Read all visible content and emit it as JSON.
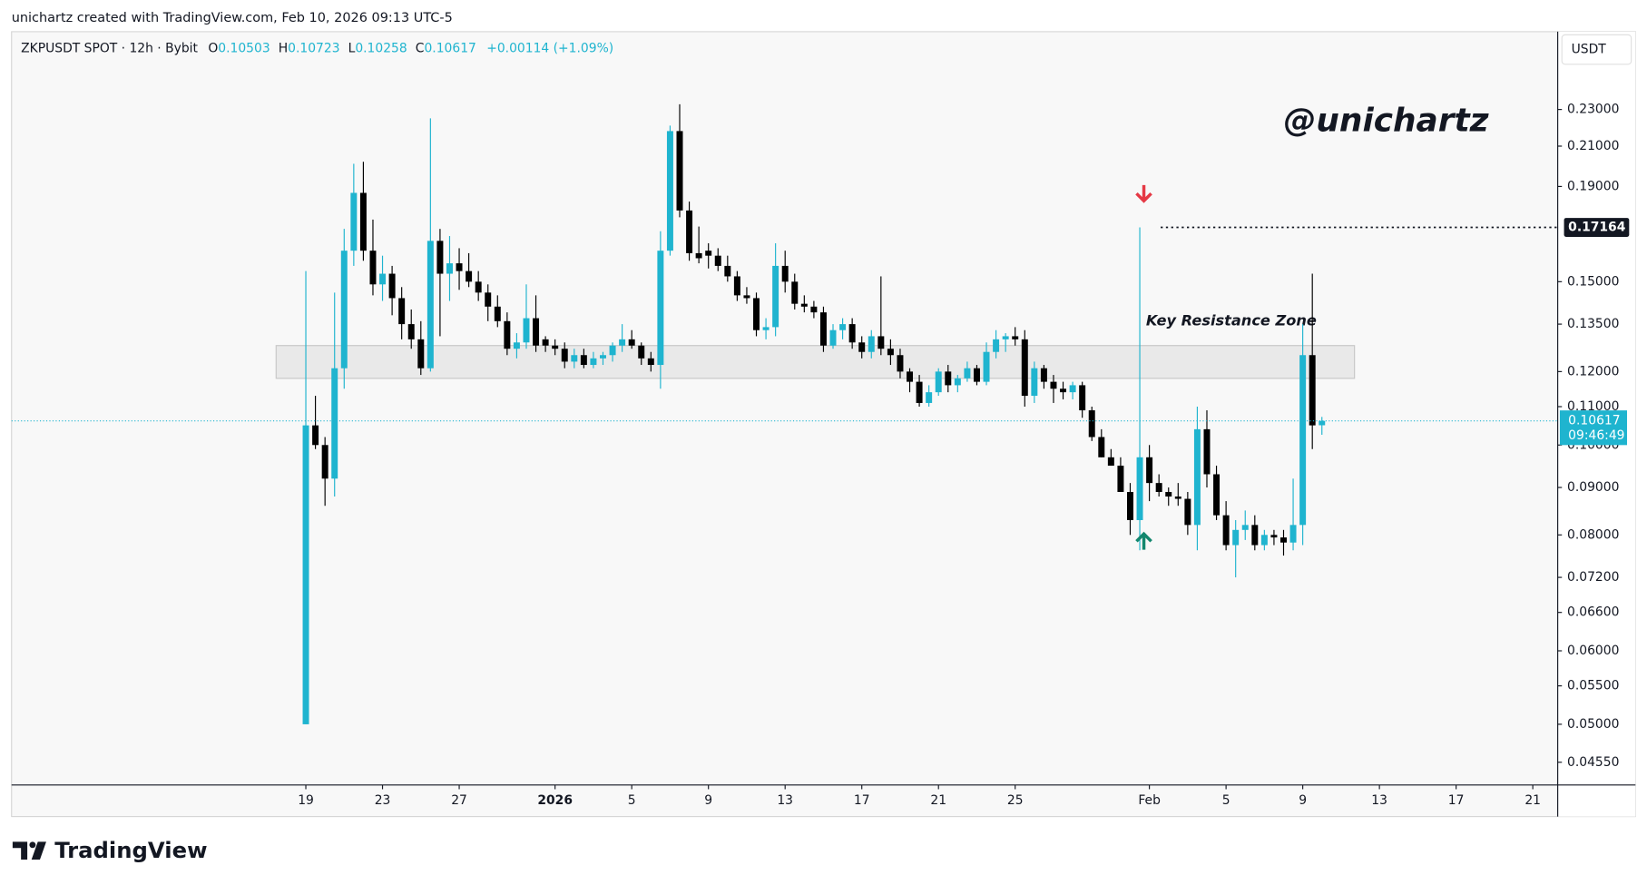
{
  "header": "unichartz created with TradingView.com, Feb 10, 2026 09:13 UTC-5",
  "watermark": "@unichartz",
  "footer": {
    "brand": "TradingView"
  },
  "chart_data": {
    "type": "candlestick",
    "symbol": "ZKPUSDT SPOT · 12h · Bybit",
    "legend_labels": [
      "O",
      "H",
      "L",
      "C"
    ],
    "change": "+0.00114 (+1.09%)",
    "currency": "USDT",
    "countdown": "09:46:49",
    "up_color": "#1fb4cf",
    "down_color": "#000000",
    "log_scale": true,
    "grid": false,
    "ylim": [
      0.043,
      0.279
    ],
    "yticks": [
      {
        "value": 0.0455,
        "label": "0.04550"
      },
      {
        "value": 0.05,
        "label": "0.05000"
      },
      {
        "value": 0.055,
        "label": "0.05500"
      },
      {
        "value": 0.06,
        "label": "0.06000"
      },
      {
        "value": 0.066,
        "label": "0.06600"
      },
      {
        "value": 0.072,
        "label": "0.07200"
      },
      {
        "value": 0.08,
        "label": "0.08000"
      },
      {
        "value": 0.09,
        "label": "0.09000"
      },
      {
        "value": 0.1,
        "label": "0.10000"
      },
      {
        "value": 0.11,
        "label": "0.11000"
      },
      {
        "value": 0.12,
        "label": "0.12000"
      },
      {
        "value": 0.135,
        "label": "0.13500"
      },
      {
        "value": 0.15,
        "label": "0.15000"
      },
      {
        "value": 0.19,
        "label": "0.19000"
      },
      {
        "value": 0.21,
        "label": "0.21000"
      },
      {
        "value": 0.23,
        "label": "0.23000"
      }
    ],
    "xlim": [
      -30.7,
      130.6
    ],
    "xticks": [
      {
        "value": 0,
        "label": "19"
      },
      {
        "value": 8,
        "label": "23"
      },
      {
        "value": 16,
        "label": "27"
      },
      {
        "value": 26,
        "label": "2026"
      },
      {
        "value": 34,
        "label": "5"
      },
      {
        "value": 42,
        "label": "9"
      },
      {
        "value": 50,
        "label": "13"
      },
      {
        "value": 58,
        "label": "17"
      },
      {
        "value": 66,
        "label": "21"
      },
      {
        "value": 74,
        "label": "25"
      },
      {
        "value": 88,
        "label": "Feb"
      },
      {
        "value": 96,
        "label": "5"
      },
      {
        "value": 104,
        "label": "9"
      },
      {
        "value": 112,
        "label": "13"
      },
      {
        "value": 120,
        "label": "17"
      },
      {
        "value": 128,
        "label": "21"
      }
    ],
    "open": [
      0.05,
      0.105,
      0.1,
      0.092,
      0.121,
      0.162,
      0.187,
      0.162,
      0.149,
      0.153,
      0.144,
      0.135,
      0.13,
      0.121,
      0.166,
      0.153,
      0.157,
      0.154,
      0.15,
      0.146,
      0.141,
      0.136,
      0.127,
      0.129,
      0.137,
      0.13,
      0.128,
      0.127,
      0.123,
      0.125,
      0.122,
      0.124,
      0.125,
      0.128,
      0.13,
      0.128,
      0.124,
      0.122,
      0.162,
      0.218,
      0.179,
      0.161,
      0.162,
      0.16,
      0.156,
      0.152,
      0.145,
      0.144,
      0.133,
      0.134,
      0.156,
      0.15,
      0.142,
      0.141,
      0.139,
      0.128,
      0.133,
      0.135,
      0.129,
      0.126,
      0.131,
      0.127,
      0.125,
      0.12,
      0.117,
      0.111,
      0.114,
      0.12,
      0.116,
      0.118,
      0.121,
      0.117,
      0.126,
      0.13,
      0.131,
      0.13,
      0.113,
      0.121,
      0.117,
      0.115,
      0.114,
      0.116,
      0.109,
      0.102,
      0.097,
      0.095,
      0.089,
      0.083,
      0.097,
      0.091,
      0.089,
      0.088,
      0.0875,
      0.082,
      0.104,
      0.093,
      0.084,
      0.078,
      0.081,
      0.082,
      0.078,
      0.08,
      0.0795,
      0.0785,
      0.082,
      0.125,
      0.10503
    ],
    "high": [
      0.154,
      0.113,
      0.102,
      0.146,
      0.171,
      0.201,
      0.202,
      0.175,
      0.16,
      0.156,
      0.148,
      0.14,
      0.136,
      0.225,
      0.171,
      0.168,
      0.163,
      0.161,
      0.154,
      0.149,
      0.145,
      0.139,
      0.132,
      0.149,
      0.145,
      0.131,
      0.13,
      0.129,
      0.127,
      0.127,
      0.126,
      0.126,
      0.129,
      0.135,
      0.133,
      0.129,
      0.126,
      0.17,
      0.221,
      0.233,
      0.183,
      0.172,
      0.165,
      0.163,
      0.16,
      0.154,
      0.148,
      0.146,
      0.137,
      0.165,
      0.162,
      0.153,
      0.145,
      0.143,
      0.141,
      0.135,
      0.137,
      0.137,
      0.131,
      0.133,
      0.152,
      0.13,
      0.127,
      0.121,
      0.119,
      0.116,
      0.121,
      0.122,
      0.119,
      0.123,
      0.122,
      0.129,
      0.133,
      0.132,
      0.134,
      0.133,
      0.123,
      0.122,
      0.119,
      0.117,
      0.117,
      0.117,
      0.11,
      0.104,
      0.099,
      0.097,
      0.091,
      0.17164,
      0.1,
      0.093,
      0.09,
      0.091,
      0.089,
      0.11,
      0.109,
      0.095,
      0.087,
      0.083,
      0.085,
      0.084,
      0.081,
      0.081,
      0.081,
      0.092,
      0.135,
      0.153,
      0.10723
    ],
    "low": [
      0.05,
      0.099,
      0.086,
      0.088,
      0.115,
      0.156,
      0.158,
      0.145,
      0.143,
      0.138,
      0.13,
      0.127,
      0.119,
      0.12,
      0.131,
      0.143,
      0.147,
      0.148,
      0.143,
      0.136,
      0.134,
      0.125,
      0.124,
      0.127,
      0.126,
      0.126,
      0.125,
      0.121,
      0.121,
      0.121,
      0.121,
      0.122,
      0.123,
      0.126,
      0.127,
      0.122,
      0.12,
      0.115,
      0.16,
      0.176,
      0.158,
      0.157,
      0.155,
      0.154,
      0.15,
      0.143,
      0.142,
      0.131,
      0.13,
      0.131,
      0.146,
      0.14,
      0.139,
      0.137,
      0.126,
      0.127,
      0.13,
      0.127,
      0.124,
      0.124,
      0.125,
      0.122,
      0.118,
      0.114,
      0.11,
      0.11,
      0.113,
      0.114,
      0.114,
      0.117,
      0.116,
      0.116,
      0.124,
      0.126,
      0.128,
      0.11,
      0.111,
      0.115,
      0.111,
      0.112,
      0.112,
      0.107,
      0.101,
      0.097,
      0.095,
      0.089,
      0.08,
      0.077,
      0.087,
      0.088,
      0.086,
      0.086,
      0.08,
      0.077,
      0.09,
      0.083,
      0.077,
      0.072,
      0.079,
      0.077,
      0.077,
      0.078,
      0.076,
      0.077,
      0.078,
      0.099,
      0.10258
    ],
    "close": [
      0.105,
      0.1,
      0.092,
      0.121,
      0.162,
      0.187,
      0.162,
      0.149,
      0.153,
      0.144,
      0.135,
      0.13,
      0.121,
      0.166,
      0.153,
      0.157,
      0.154,
      0.15,
      0.146,
      0.141,
      0.136,
      0.127,
      0.129,
      0.137,
      0.128,
      0.128,
      0.127,
      0.123,
      0.125,
      0.122,
      0.124,
      0.125,
      0.128,
      0.13,
      0.128,
      0.124,
      0.122,
      0.162,
      0.218,
      0.179,
      0.161,
      0.159,
      0.16,
      0.156,
      0.152,
      0.145,
      0.144,
      0.133,
      0.134,
      0.156,
      0.15,
      0.142,
      0.141,
      0.139,
      0.128,
      0.133,
      0.135,
      0.129,
      0.126,
      0.131,
      0.127,
      0.125,
      0.12,
      0.117,
      0.111,
      0.114,
      0.12,
      0.116,
      0.118,
      0.121,
      0.117,
      0.126,
      0.13,
      0.131,
      0.13,
      0.113,
      0.121,
      0.117,
      0.115,
      0.114,
      0.116,
      0.109,
      0.102,
      0.097,
      0.095,
      0.089,
      0.083,
      0.097,
      0.091,
      0.089,
      0.088,
      0.0875,
      0.082,
      0.104,
      0.093,
      0.084,
      0.078,
      0.081,
      0.082,
      0.078,
      0.08,
      0.0795,
      0.0785,
      0.082,
      0.125,
      0.105,
      0.10617
    ],
    "zone": {
      "label": "Key Resistance Zone",
      "low": 0.118,
      "high": 0.128
    },
    "level": 0.17164
  }
}
